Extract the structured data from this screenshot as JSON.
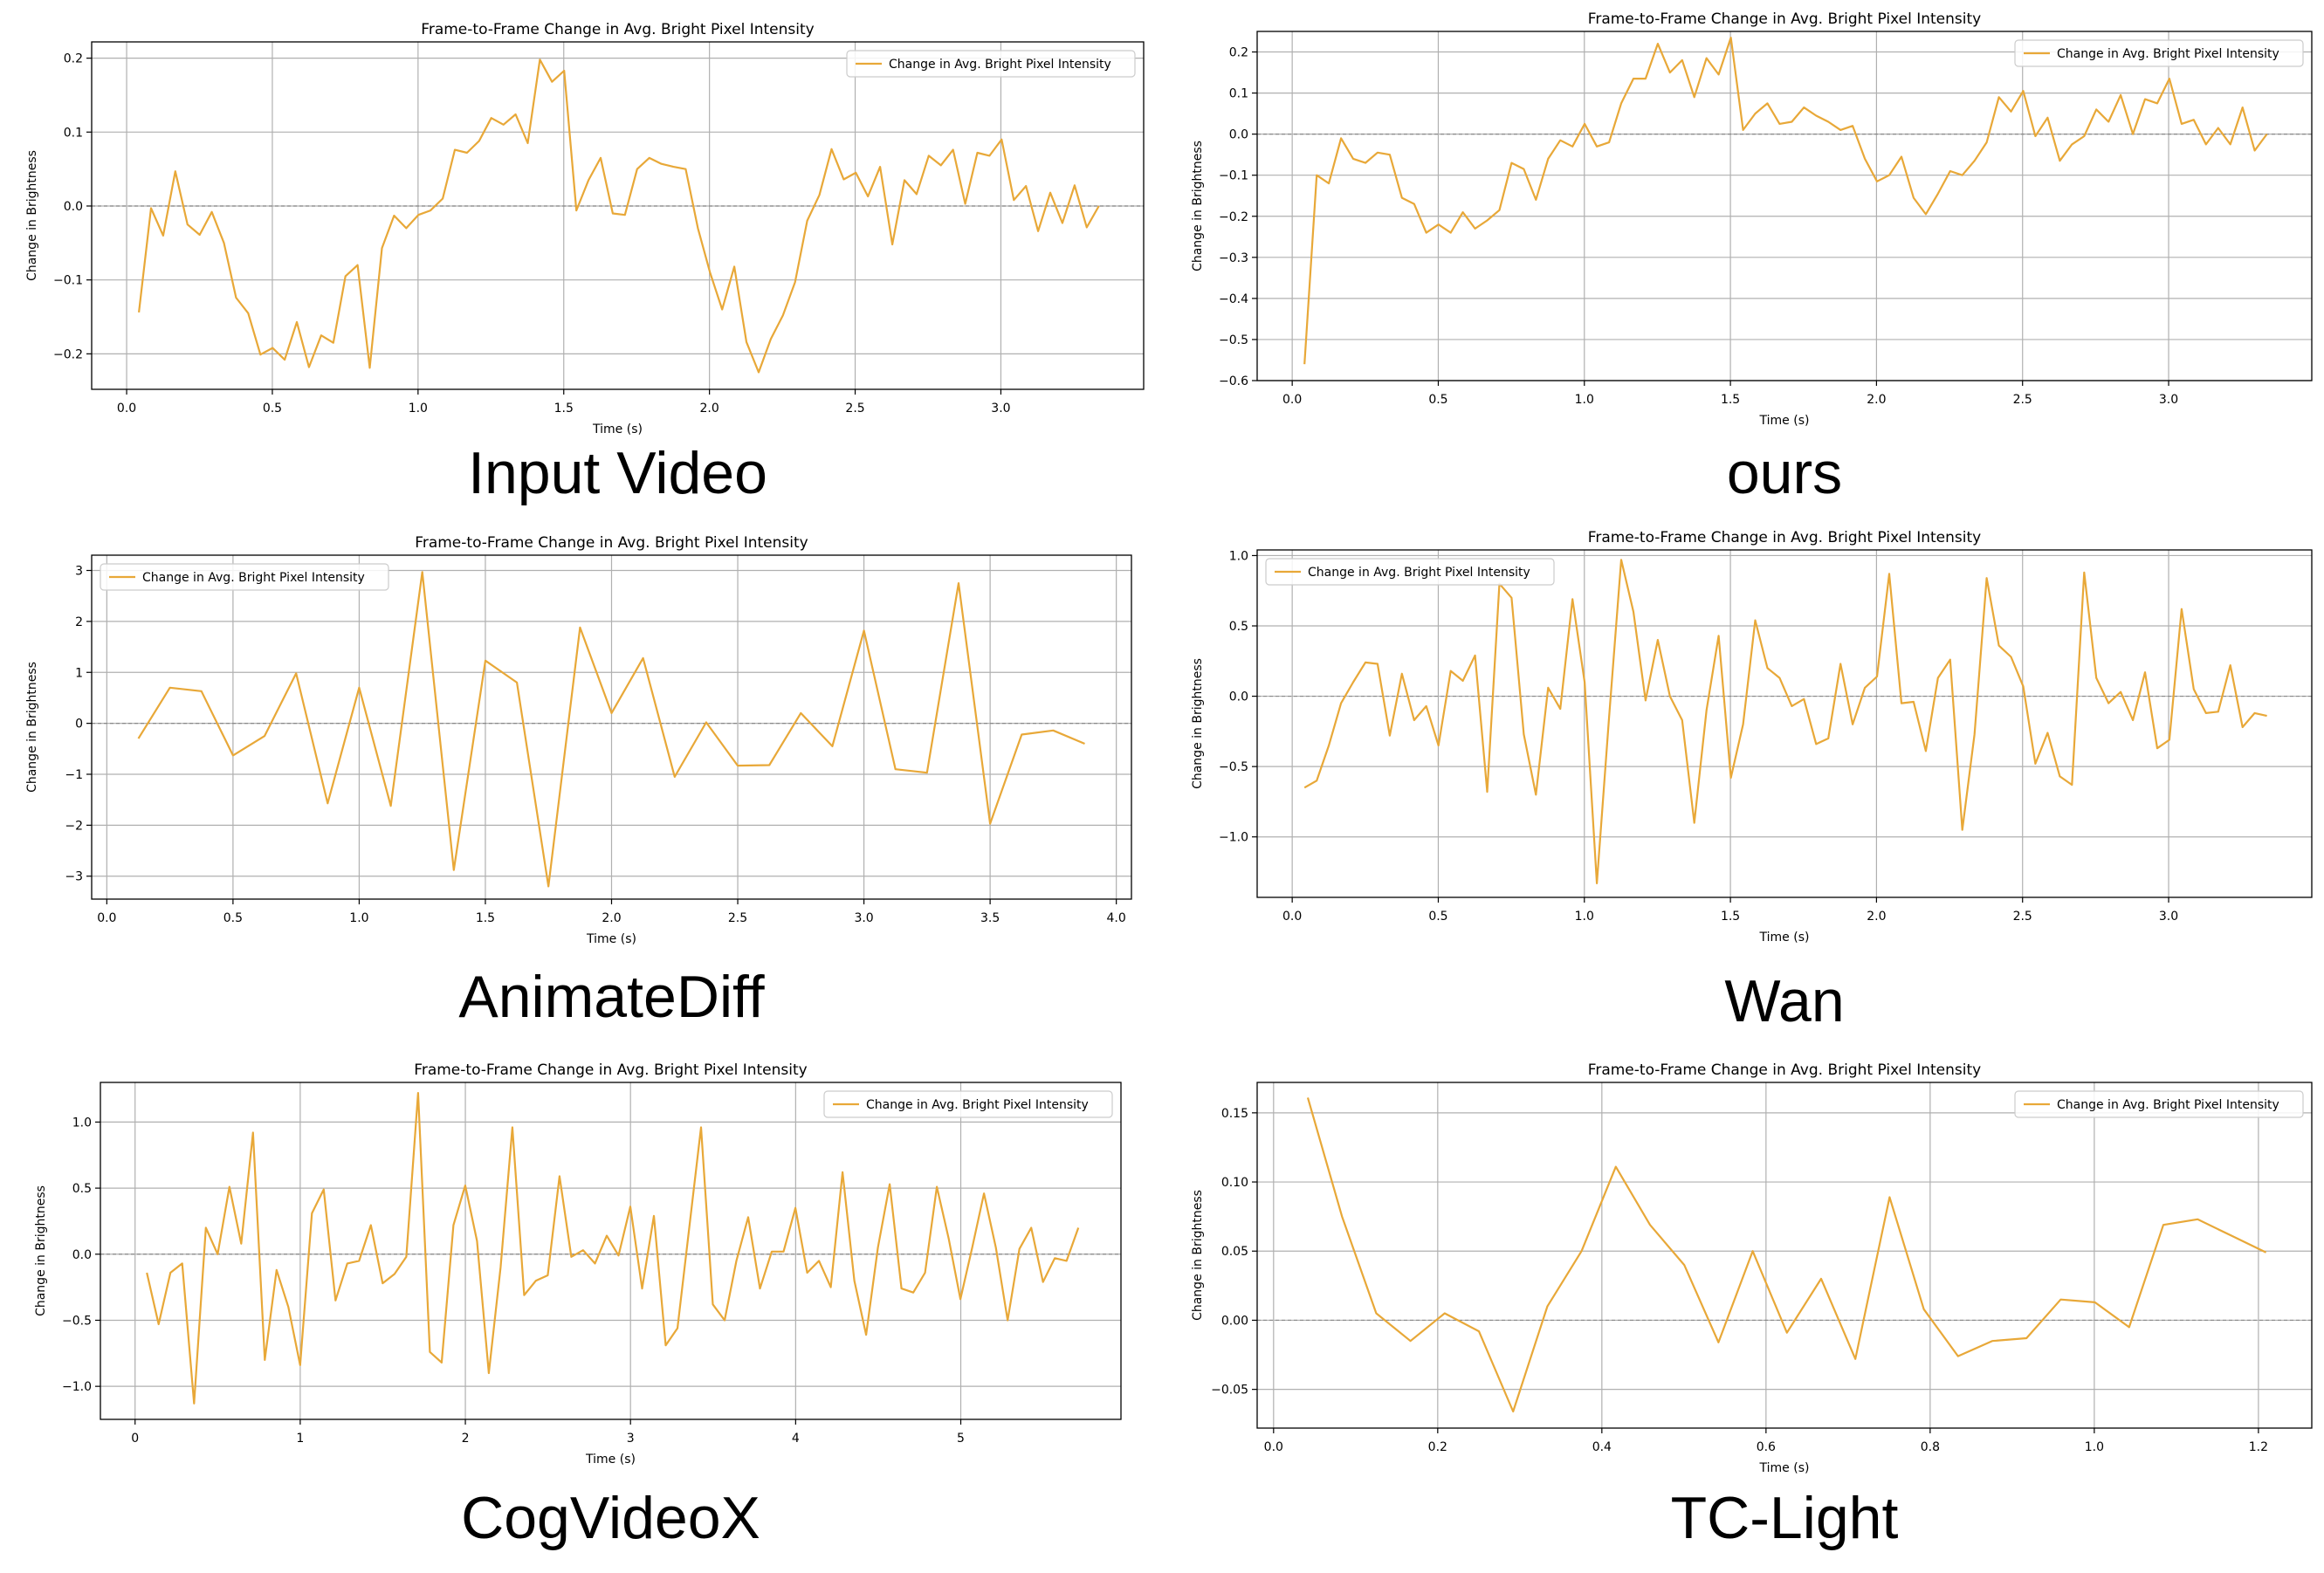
{
  "colors": {
    "line": "#E8A838",
    "zero": "#888888",
    "grid": "#b0b0b0",
    "axis": "#000000",
    "legend_border": "#cccccc"
  },
  "chart_data": [
    {
      "type": "line",
      "caption": "Input Video",
      "title": "Frame-to-Frame Change in Avg. Bright Pixel Intensity",
      "xlabel": "Time (s)",
      "ylabel": "Change in Brightness",
      "xlim": [
        -0.12,
        3.49
      ],
      "ylim": [
        -0.248,
        0.222
      ],
      "xticks": [
        0.0,
        0.5,
        1.0,
        1.5,
        2.0,
        2.5,
        3.0
      ],
      "xtick_labels": [
        "0.0",
        "0.5",
        "1.0",
        "1.5",
        "2.0",
        "2.5",
        "3.0"
      ],
      "yticks": [
        -0.2,
        -0.1,
        0.0,
        0.1,
        0.2
      ],
      "ytick_labels": [
        "−0.2",
        "−0.1",
        "0.0",
        "0.1",
        "0.2"
      ],
      "grid": true,
      "legend": {
        "label": "Change in Avg. Bright Pixel Intensity",
        "position": "upper-right"
      },
      "series": [
        {
          "name": "Change in Avg. Bright Pixel Intensity",
          "x0": 0.042,
          "dx": 0.0417,
          "values": [
            -0.144,
            -0.003,
            -0.04,
            0.047,
            -0.025,
            -0.039,
            -0.008,
            -0.05,
            -0.124,
            -0.145,
            -0.201,
            -0.192,
            -0.208,
            -0.157,
            -0.218,
            -0.175,
            -0.185,
            -0.095,
            -0.08,
            -0.219,
            -0.057,
            -0.013,
            -0.03,
            -0.012,
            -0.006,
            0.01,
            0.076,
            0.072,
            0.088,
            0.119,
            0.11,
            0.124,
            0.085,
            0.198,
            0.168,
            0.183,
            -0.006,
            0.035,
            0.065,
            -0.01,
            -0.012,
            0.05,
            0.065,
            0.057,
            0.053,
            0.05,
            -0.03,
            -0.09,
            -0.14,
            -0.082,
            -0.184,
            -0.225,
            -0.18,
            -0.148,
            -0.103,
            -0.02,
            0.015,
            0.077,
            0.036,
            0.045,
            0.013,
            0.053,
            -0.052,
            0.035,
            0.016,
            0.068,
            0.055,
            0.076,
            0.003,
            0.072,
            0.068,
            0.09,
            0.008,
            0.027,
            -0.034,
            0.018,
            -0.023,
            0.028,
            -0.029,
            0.0
          ]
        }
      ]
    },
    {
      "type": "line",
      "caption": "ours",
      "title": "Frame-to-Frame Change in Avg. Bright Pixel Intensity",
      "xlabel": "Time (s)",
      "ylabel": "Change in Brightness",
      "xlim": [
        -0.12,
        3.49
      ],
      "ylim": [
        -0.6,
        0.25
      ],
      "xticks": [
        0.0,
        0.5,
        1.0,
        1.5,
        2.0,
        2.5,
        3.0
      ],
      "xtick_labels": [
        "0.0",
        "0.5",
        "1.0",
        "1.5",
        "2.0",
        "2.5",
        "3.0"
      ],
      "yticks": [
        -0.6,
        -0.5,
        -0.4,
        -0.3,
        -0.2,
        -0.1,
        0.0,
        0.1,
        0.2
      ],
      "ytick_labels": [
        "−0.6",
        "−0.5",
        "−0.4",
        "−0.3",
        "−0.2",
        "−0.1",
        "0.0",
        "0.1",
        "0.2"
      ],
      "grid": true,
      "legend": {
        "label": "Change in Avg. Bright Pixel Intensity",
        "position": "upper-right"
      },
      "series": [
        {
          "name": "Change in Avg. Bright Pixel Intensity",
          "x0": 0.042,
          "dx": 0.0417,
          "values": [
            -0.56,
            -0.1,
            -0.12,
            -0.01,
            -0.06,
            -0.07,
            -0.045,
            -0.05,
            -0.155,
            -0.17,
            -0.24,
            -0.22,
            -0.24,
            -0.19,
            -0.23,
            -0.21,
            -0.185,
            -0.07,
            -0.085,
            -0.16,
            -0.06,
            -0.015,
            -0.03,
            0.025,
            -0.03,
            -0.02,
            0.075,
            0.135,
            0.135,
            0.22,
            0.15,
            0.18,
            0.09,
            0.185,
            0.145,
            0.235,
            0.01,
            0.05,
            0.075,
            0.025,
            0.03,
            0.065,
            0.045,
            0.03,
            0.01,
            0.02,
            -0.06,
            -0.115,
            -0.1,
            -0.055,
            -0.155,
            -0.195,
            -0.145,
            -0.09,
            -0.1,
            -0.065,
            -0.02,
            0.09,
            0.055,
            0.105,
            -0.005,
            0.04,
            -0.065,
            -0.025,
            -0.005,
            0.06,
            0.03,
            0.095,
            0.0,
            0.085,
            0.075,
            0.135,
            0.025,
            0.035,
            -0.025,
            0.015,
            -0.025,
            0.065,
            -0.04,
            0.0
          ]
        }
      ]
    },
    {
      "type": "line",
      "caption": "AnimateDiff",
      "title": "Frame-to-Frame Change in Avg. Bright Pixel Intensity",
      "xlabel": "Time (s)",
      "ylabel": "Change in Brightness",
      "xlim": [
        -0.06,
        4.06
      ],
      "ylim": [
        -3.45,
        3.3
      ],
      "xticks": [
        0.0,
        0.5,
        1.0,
        1.5,
        2.0,
        2.5,
        3.0,
        3.5,
        4.0
      ],
      "xtick_labels": [
        "0.0",
        "0.5",
        "1.0",
        "1.5",
        "2.0",
        "2.5",
        "3.0",
        "3.5",
        "4.0"
      ],
      "yticks": [
        -3,
        -2,
        -1,
        0,
        1,
        2,
        3
      ],
      "ytick_labels": [
        "−3",
        "−2",
        "−1",
        "0",
        "1",
        "2",
        "3"
      ],
      "grid": true,
      "legend": {
        "label": "Change in Avg. Bright Pixel Intensity",
        "position": "upper-left"
      },
      "series": [
        {
          "name": "Change in Avg. Bright Pixel Intensity",
          "x0": 0.125,
          "dx": 0.125,
          "values": [
            -0.3,
            0.7,
            0.63,
            -0.63,
            -0.25,
            0.98,
            -1.57,
            0.7,
            -1.62,
            2.97,
            -2.88,
            1.23,
            0.8,
            -3.2,
            1.88,
            0.2,
            1.28,
            -1.05,
            0.02,
            -0.83,
            -0.82,
            0.2,
            -0.45,
            1.82,
            -0.9,
            -0.97,
            2.75,
            -1.97,
            -0.22,
            -0.14,
            -0.4
          ]
        }
      ]
    },
    {
      "type": "line",
      "caption": "Wan",
      "title": "Frame-to-Frame Change in Avg. Bright Pixel Intensity",
      "xlabel": "Time (s)",
      "ylabel": "Change in Brightness",
      "xlim": [
        -0.12,
        3.49
      ],
      "ylim": [
        -1.43,
        1.04
      ],
      "xticks": [
        0.0,
        0.5,
        1.0,
        1.5,
        2.0,
        2.5,
        3.0
      ],
      "xtick_labels": [
        "0.0",
        "0.5",
        "1.0",
        "1.5",
        "2.0",
        "2.5",
        "3.0"
      ],
      "yticks": [
        -1.0,
        -0.5,
        0.0,
        0.5,
        1.0
      ],
      "ytick_labels": [
        "−1.0",
        "−0.5",
        "0.0",
        "0.5",
        "1.0"
      ],
      "grid": true,
      "legend": {
        "label": "Change in Avg. Bright Pixel Intensity",
        "position": "upper-left"
      },
      "series": [
        {
          "name": "Change in Avg. Bright Pixel Intensity",
          "x0": 0.042,
          "dx": 0.0417,
          "values": [
            -0.65,
            -0.6,
            -0.35,
            -0.05,
            0.1,
            0.24,
            0.23,
            -0.28,
            0.16,
            -0.17,
            -0.07,
            -0.35,
            0.18,
            0.11,
            0.29,
            -0.68,
            0.8,
            0.7,
            -0.27,
            -0.7,
            0.06,
            -0.09,
            0.69,
            0.1,
            -1.33,
            -0.15,
            0.97,
            0.6,
            -0.03,
            0.4,
            0.0,
            -0.17,
            -0.9,
            -0.1,
            0.43,
            -0.58,
            -0.2,
            0.54,
            0.2,
            0.13,
            -0.07,
            -0.02,
            -0.34,
            -0.3,
            0.23,
            -0.2,
            0.06,
            0.14,
            0.87,
            -0.05,
            -0.04,
            -0.39,
            0.13,
            0.26,
            -0.95,
            -0.27,
            0.84,
            0.36,
            0.28,
            0.07,
            -0.48,
            -0.26,
            -0.57,
            -0.63,
            0.88,
            0.13,
            -0.05,
            0.03,
            -0.17,
            0.17,
            -0.37,
            -0.31,
            0.62,
            0.05,
            -0.12,
            -0.11,
            0.22,
            -0.22,
            -0.12,
            -0.14
          ]
        }
      ]
    },
    {
      "type": "line",
      "caption": "CogVideoX",
      "title": "Frame-to-Frame Change in Avg. Bright Pixel Intensity",
      "xlabel": "Time (s)",
      "ylabel": "Change in Brightness",
      "xlim": [
        -0.21,
        5.97
      ],
      "ylim": [
        -1.25,
        1.3
      ],
      "xticks": [
        0,
        1,
        2,
        3,
        4,
        5
      ],
      "xtick_labels": [
        "0",
        "1",
        "2",
        "3",
        "4",
        "5"
      ],
      "yticks": [
        -1.0,
        -0.5,
        0.0,
        0.5,
        1.0
      ],
      "ytick_labels": [
        "−1.0",
        "−0.5",
        "0.0",
        "0.5",
        "1.0"
      ],
      "grid": true,
      "legend": {
        "label": "Change in Avg. Bright Pixel Intensity",
        "position": "upper-right"
      },
      "series": [
        {
          "name": "Change in Avg. Bright Pixel Intensity",
          "x0": 0.0714,
          "dx": 0.0714,
          "values": [
            -0.14,
            -0.53,
            -0.14,
            -0.07,
            -1.13,
            0.2,
            0.0,
            0.51,
            0.08,
            0.92,
            -0.8,
            -0.12,
            -0.4,
            -0.84,
            0.31,
            0.49,
            -0.35,
            -0.07,
            -0.05,
            0.22,
            -0.22,
            -0.15,
            -0.02,
            1.22,
            -0.74,
            -0.82,
            0.22,
            0.52,
            0.1,
            -0.9,
            -0.1,
            0.96,
            -0.31,
            -0.2,
            -0.16,
            0.59,
            -0.02,
            0.03,
            -0.07,
            0.14,
            -0.01,
            0.36,
            -0.26,
            0.29,
            -0.69,
            -0.56,
            0.2,
            0.96,
            -0.38,
            -0.5,
            -0.05,
            0.28,
            -0.26,
            0.02,
            0.02,
            0.35,
            -0.14,
            -0.05,
            -0.25,
            0.62,
            -0.2,
            -0.61,
            0.05,
            0.53,
            -0.26,
            -0.29,
            -0.14,
            0.51,
            0.12,
            -0.34,
            0.05,
            0.46,
            0.05,
            -0.5,
            0.04,
            0.2,
            -0.21,
            -0.03,
            -0.05,
            0.2
          ]
        }
      ]
    },
    {
      "type": "line",
      "caption": "TC-Light",
      "title": "Frame-to-Frame Change in Avg. Bright Pixel Intensity",
      "xlabel": "Time (s)",
      "ylabel": "Change in Brightness",
      "xlim": [
        -0.02,
        1.265
      ],
      "ylim": [
        -0.078,
        0.172
      ],
      "xticks": [
        0.0,
        0.2,
        0.4,
        0.6,
        0.8,
        1.0,
        1.2
      ],
      "xtick_labels": [
        "0.0",
        "0.2",
        "0.4",
        "0.6",
        "0.8",
        "1.0",
        "1.2"
      ],
      "yticks": [
        -0.05,
        0.0,
        0.05,
        0.1,
        0.15
      ],
      "ytick_labels": [
        "−0.05",
        "0.00",
        "0.05",
        "0.10",
        "0.15"
      ],
      "grid": true,
      "legend": {
        "label": "Change in Avg. Bright Pixel Intensity",
        "position": "upper-right"
      },
      "series": [
        {
          "name": "Change in Avg. Bright Pixel Intensity",
          "x0": 0.0417,
          "dx": 0.0417,
          "values": [
            0.161,
            0.075,
            0.005,
            -0.015,
            0.005,
            -0.008,
            -0.066,
            0.01,
            0.05,
            0.111,
            0.069,
            0.04,
            -0.016,
            0.05,
            -0.009,
            0.03,
            -0.028,
            0.089,
            0.008,
            -0.026,
            -0.015,
            -0.013,
            0.015,
            0.013,
            -0.005,
            0.069,
            0.073,
            0.061,
            0.049
          ]
        }
      ]
    }
  ]
}
